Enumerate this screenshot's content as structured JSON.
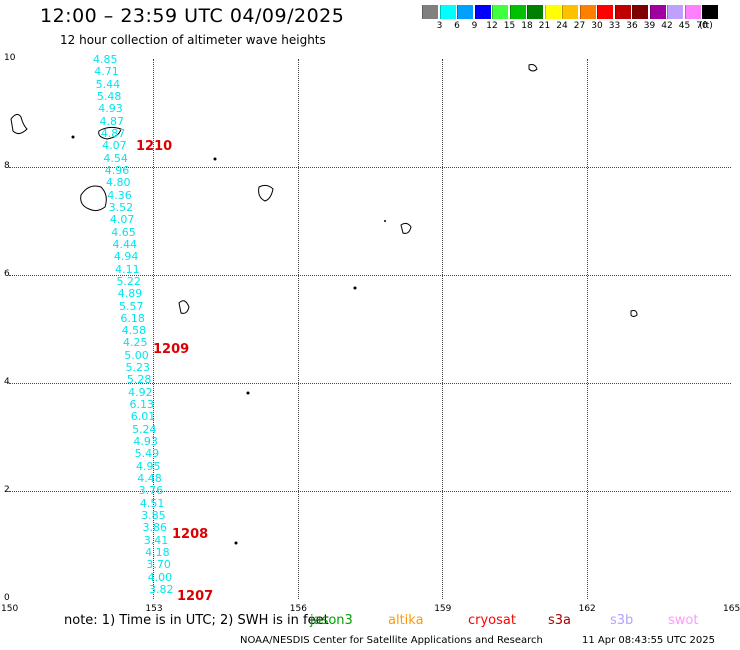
{
  "title": "12:00 – 23:59 UTC 04/09/2025",
  "subtitle": "12 hour collection of altimeter wave heights",
  "colorbar": {
    "unit": "(ft)",
    "colors": [
      "#808080",
      "#00ffff",
      "#00a0ff",
      "#0000ff",
      "#40ff40",
      "#00c000",
      "#008000",
      "#ffff00",
      "#ffc000",
      "#ff8000",
      "#ff0000",
      "#c00000",
      "#800000",
      "#a000a0",
      "#c0a0ff",
      "#ff80ff",
      "#000000"
    ],
    "labels": [
      "3",
      "6",
      "9",
      "12",
      "15",
      "18",
      "21",
      "24",
      "27",
      "30",
      "33",
      "36",
      "39",
      "42",
      "45",
      "70"
    ]
  },
  "axes": {
    "x_ticks": [
      "150",
      "153",
      "156",
      "159",
      "162",
      "165"
    ],
    "y_ticks": [
      "0",
      "2",
      "4",
      "6",
      "8",
      "10"
    ]
  },
  "wave_heights": [
    "4.85",
    "4.71",
    "5.44",
    "5.48",
    "4.93",
    "4.87",
    "4.87",
    "4.07",
    "4.54",
    "4.96",
    "4.80",
    "4.36",
    "3.52",
    "4.07",
    "4.65",
    "4.44",
    "4.94",
    "4.11",
    "5.22",
    "4.89",
    "5.57",
    "6.18",
    "4.58",
    "4.25",
    "5.00",
    "5.23",
    "5.28",
    "4.92",
    "6.13",
    "6.01",
    "5.24",
    "4.93",
    "5.49",
    "4.95",
    "4.48",
    "3.76",
    "4.51",
    "3.85",
    "3.86",
    "3.41",
    "4.18",
    "3.70",
    "4.00",
    "3.82"
  ],
  "pass_labels": [
    "1210",
    "1209",
    "1208",
    "1207"
  ],
  "footer": {
    "note": "note:  1) Time is in UTC; 2) SWH is in feet",
    "satellites": [
      {
        "name": "jason3",
        "color": "#00a000"
      },
      {
        "name": "altika",
        "color": "#ff9900"
      },
      {
        "name": "cryosat",
        "color": "#ff0000"
      },
      {
        "name": "s3a",
        "color": "#aa0000"
      },
      {
        "name": "s3b",
        "color": "#b8a0ff"
      },
      {
        "name": "swot",
        "color": "#ff99ff"
      }
    ],
    "credit": "NOAA/NESDIS Center for Satellite Applications and Research",
    "timestamp": "11 Apr 08:43:55 UTC 2025"
  }
}
